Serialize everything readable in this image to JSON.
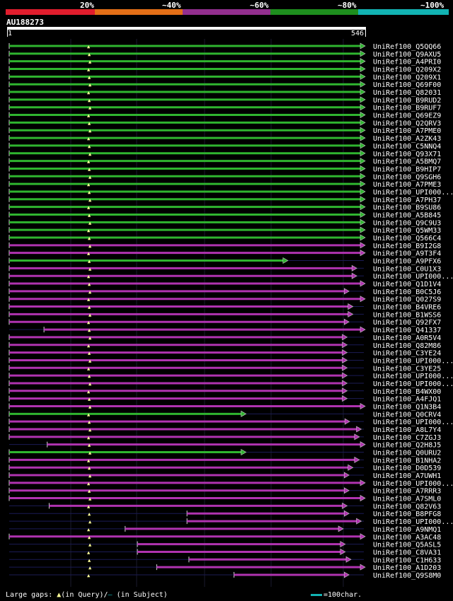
{
  "legend": {
    "labels": [
      "20%",
      "~40%",
      "~60%",
      "~80%",
      "~100%"
    ],
    "colors": [
      "#e11d2d",
      "#e46f17",
      "#932f8f",
      "#1e8f1e",
      "#12b3b3"
    ]
  },
  "query": {
    "id": "AU188273",
    "start": "1",
    "end": "546"
  },
  "hits": [
    {
      "label": "UniRef100_Q5QQ66",
      "color": "green",
      "start": 1,
      "end": 546
    },
    {
      "label": "UniRef100_Q9AXU5",
      "color": "green",
      "start": 1,
      "end": 546
    },
    {
      "label": "UniRef100_A4PRI0",
      "color": "green",
      "start": 1,
      "end": 546
    },
    {
      "label": "UniRef100_Q209X2",
      "color": "green",
      "start": 1,
      "end": 546
    },
    {
      "label": "UniRef100_Q209X1",
      "color": "green",
      "start": 1,
      "end": 546
    },
    {
      "label": "UniRef100_Q69F00",
      "color": "green",
      "start": 1,
      "end": 546
    },
    {
      "label": "UniRef100_Q82031",
      "color": "green",
      "start": 1,
      "end": 546
    },
    {
      "label": "UniRef100_B9RUD2",
      "color": "green",
      "start": 1,
      "end": 546
    },
    {
      "label": "UniRef100_B9RUF7",
      "color": "green",
      "start": 1,
      "end": 546
    },
    {
      "label": "UniRef100_Q69EZ9",
      "color": "green",
      "start": 1,
      "end": 546
    },
    {
      "label": "UniRef100_Q2QRV3",
      "color": "green",
      "start": 1,
      "end": 546
    },
    {
      "label": "UniRef100_A7PME0",
      "color": "green",
      "start": 1,
      "end": 546
    },
    {
      "label": "UniRef100_A2ZK43",
      "color": "green",
      "start": 1,
      "end": 546
    },
    {
      "label": "UniRef100_C5NNQ4",
      "color": "green",
      "start": 1,
      "end": 546
    },
    {
      "label": "UniRef100_Q93X71",
      "color": "green",
      "start": 1,
      "end": 546
    },
    {
      "label": "UniRef100_A5BMQ7",
      "color": "green",
      "start": 1,
      "end": 546
    },
    {
      "label": "UniRef100_B9HIP7",
      "color": "green",
      "start": 1,
      "end": 546
    },
    {
      "label": "UniRef100_Q9SGH6",
      "color": "green",
      "start": 1,
      "end": 546
    },
    {
      "label": "UniRef100_A7PME3",
      "color": "green",
      "start": 1,
      "end": 546
    },
    {
      "label": "UniRef100_UPI000...",
      "color": "green",
      "start": 1,
      "end": 546
    },
    {
      "label": "UniRef100_A7PH37",
      "color": "green",
      "start": 1,
      "end": 546
    },
    {
      "label": "UniRef100_B9SU86",
      "color": "green",
      "start": 1,
      "end": 546
    },
    {
      "label": "UniRef100_A5B845",
      "color": "green",
      "start": 1,
      "end": 546
    },
    {
      "label": "UniRef100_Q9C9U3",
      "color": "green",
      "start": 1,
      "end": 546
    },
    {
      "label": "UniRef100_Q5WM33",
      "color": "green",
      "start": 1,
      "end": 546
    },
    {
      "label": "UniRef100_Q566C4",
      "color": "green",
      "start": 1,
      "end": 546
    },
    {
      "label": "UniRef100_B9I2G8",
      "color": "purple",
      "start": 1,
      "end": 546
    },
    {
      "label": "UniRef100_A9T3F4",
      "color": "purple",
      "start": 1,
      "end": 546
    },
    {
      "label": "UniRef100_A9PFX6",
      "color": "green",
      "start": 1,
      "end": 426
    },
    {
      "label": "UniRef100_C0U1X3",
      "color": "purple",
      "start": 1,
      "end": 533
    },
    {
      "label": "UniRef100_UPI000...",
      "color": "purple",
      "start": 1,
      "end": 533
    },
    {
      "label": "UniRef100_Q1D1V4",
      "color": "purple",
      "start": 1,
      "end": 546
    },
    {
      "label": "UniRef100_B0C5J6",
      "color": "purple",
      "start": 1,
      "end": 521
    },
    {
      "label": "UniRef100_Q027S9",
      "color": "purple",
      "start": 1,
      "end": 546
    },
    {
      "label": "UniRef100_B4VRE6",
      "color": "purple",
      "start": 1,
      "end": 527
    },
    {
      "label": "UniRef100_B1WSS6",
      "color": "purple",
      "start": 1,
      "end": 527
    },
    {
      "label": "UniRef100_Q92FX7",
      "color": "purple",
      "start": 1,
      "end": 521
    },
    {
      "label": "UniRef100_Q41337",
      "color": "purple",
      "start": 55,
      "end": 546
    },
    {
      "label": "UniRef100_A0R5V4",
      "color": "purple",
      "start": 1,
      "end": 518
    },
    {
      "label": "UniRef100_Q82M86",
      "color": "purple",
      "start": 1,
      "end": 518
    },
    {
      "label": "UniRef100_C3YE24",
      "color": "purple",
      "start": 1,
      "end": 518
    },
    {
      "label": "UniRef100_UPI000...",
      "color": "purple",
      "start": 1,
      "end": 518
    },
    {
      "label": "UniRef100_C3YE25",
      "color": "purple",
      "start": 1,
      "end": 518
    },
    {
      "label": "UniRef100_UPI000...",
      "color": "purple",
      "start": 1,
      "end": 518
    },
    {
      "label": "UniRef100_UPI000...",
      "color": "purple",
      "start": 1,
      "end": 518
    },
    {
      "label": "UniRef100_B4WX00",
      "color": "purple",
      "start": 1,
      "end": 518
    },
    {
      "label": "UniRef100_A4FJQ1",
      "color": "purple",
      "start": 1,
      "end": 518
    },
    {
      "label": "UniRef100_Q1N3B4",
      "color": "purple",
      "start": 1,
      "end": 546
    },
    {
      "label": "UniRef100_Q0CRV4",
      "color": "green",
      "start": 1,
      "end": 361
    },
    {
      "label": "UniRef100_UPI000...",
      "color": "purple",
      "start": 1,
      "end": 522
    },
    {
      "label": "UniRef100_A8L7Y4",
      "color": "purple",
      "start": 1,
      "end": 540
    },
    {
      "label": "UniRef100_C7ZGJ3",
      "color": "purple",
      "start": 1,
      "end": 537
    },
    {
      "label": "UniRef100_Q2H8J5",
      "color": "purple",
      "start": 60,
      "end": 546
    },
    {
      "label": "UniRef100_Q0URU2",
      "color": "green",
      "start": 1,
      "end": 361
    },
    {
      "label": "UniRef100_B1NHA2",
      "color": "purple",
      "start": 1,
      "end": 537
    },
    {
      "label": "UniRef100_D0D539",
      "color": "purple",
      "start": 1,
      "end": 527
    },
    {
      "label": "UniRef100_A7UWH1",
      "color": "purple",
      "start": 1,
      "end": 521
    },
    {
      "label": "UniRef100_UPI000...",
      "color": "purple",
      "start": 1,
      "end": 546
    },
    {
      "label": "UniRef100_A7RRR3",
      "color": "purple",
      "start": 1,
      "end": 521
    },
    {
      "label": "UniRef100_A7SML0",
      "color": "purple",
      "start": 1,
      "end": 546
    },
    {
      "label": "UniRef100_Q82V63",
      "color": "purple",
      "start": 63,
      "end": 518
    },
    {
      "label": "UniRef100_B8PFG8",
      "color": "purple",
      "start": 277,
      "end": 521
    },
    {
      "label": "UniRef100_UPI000...",
      "color": "purple",
      "start": 277,
      "end": 540
    },
    {
      "label": "UniRef100_A9NMQ1",
      "color": "purple",
      "start": 181,
      "end": 512
    },
    {
      "label": "UniRef100_A3AC48",
      "color": "purple",
      "start": 1,
      "end": 546
    },
    {
      "label": "UniRef100_Q5ASL5",
      "color": "purple",
      "start": 200,
      "end": 515
    },
    {
      "label": "UniRef100_C8VA31",
      "color": "purple",
      "start": 200,
      "end": 515
    },
    {
      "label": "UniRef100_C1H633",
      "color": "purple",
      "start": 280,
      "end": 524
    },
    {
      "label": "UniRef100_A1D203",
      "color": "purple",
      "start": 230,
      "end": 546
    },
    {
      "label": "UniRef100_Q9S8M0",
      "color": "purple",
      "start": 350,
      "end": 521
    }
  ],
  "footer": {
    "large_gaps_prefix": "Large gaps: ",
    "gap_query_text": "(in Query)/",
    "gap_subject_text": " (in Subject)",
    "scale_text": "=100char."
  },
  "icons": {
    "gap_in_query": "triangle-up-icon",
    "gap_in_subject": "dash-icon",
    "hit_end": "arrow-right-icon"
  }
}
